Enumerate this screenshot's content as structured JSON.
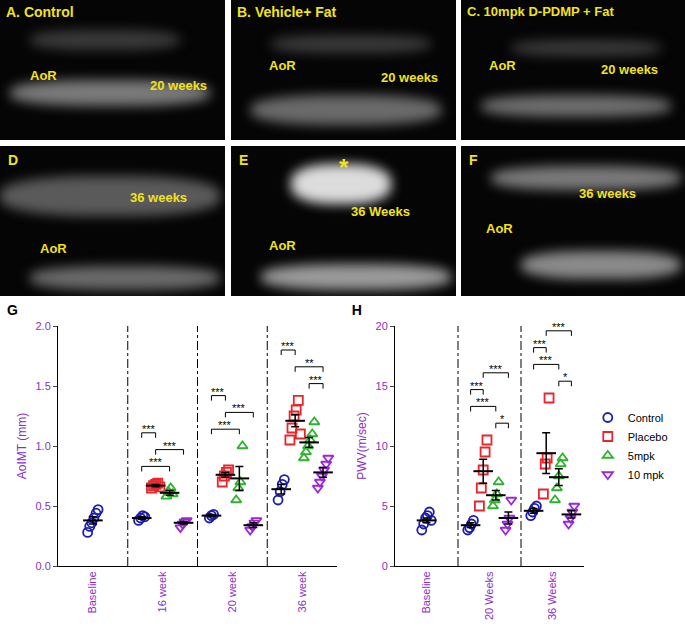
{
  "image_panels": [
    {
      "title": "A. Control",
      "vessel_label": "AoR",
      "time_label": "20 weeks"
    },
    {
      "title": "B. Vehicle+ Fat",
      "vessel_label": "AoR",
      "time_label": "20 weeks"
    },
    {
      "title": "C. 10mpk D-PDMP + Fat",
      "vessel_label": "AoR",
      "time_label": "20 weeks"
    },
    {
      "title": "D",
      "vessel_label": "AoR",
      "time_label": "36 weeks"
    },
    {
      "title": "E",
      "vessel_label": "AoR",
      "time_label": "36 Weeks",
      "marker_label": "*"
    },
    {
      "title": "F",
      "vessel_label": "AoR",
      "time_label": "36 weeks"
    }
  ],
  "chart_data": [
    {
      "type": "scatter",
      "title": "G",
      "y_label": "AoIMT (mm)",
      "categories": [
        "Baseline",
        "16 week",
        "20 week",
        "36 week"
      ],
      "ylim": [
        0,
        2.0
      ],
      "yticks": [
        {
          "value": 0,
          "label": "0.0"
        },
        {
          "value": 0.5,
          "label": "0.5"
        },
        {
          "value": 1.0,
          "label": "1.0"
        },
        {
          "value": 1.5,
          "label": "1.5"
        },
        {
          "value": 2.0,
          "label": "2.0"
        }
      ],
      "grid": false,
      "series": [
        {
          "name": "Control",
          "color": "#1c1cb0",
          "marker": "circle",
          "values": [
            [
              0.28,
              0.33,
              0.36,
              0.4,
              0.44,
              0.47
            ],
            [
              0.38,
              0.4,
              0.42,
              0.41
            ],
            [
              0.4,
              0.42,
              0.43
            ],
            [
              0.55,
              0.62,
              0.68,
              0.72
            ]
          ],
          "mean": [
            0.38,
            0.4,
            0.42,
            0.64
          ],
          "sem": [
            0.03,
            0.01,
            0.01,
            0.04
          ]
        },
        {
          "name": "Placebo",
          "color": "#e8262b",
          "marker": "square",
          "values": [
            null,
            [
              0.65,
              0.67,
              0.68,
              0.69,
              0.66
            ],
            [
              0.7,
              0.75,
              0.78,
              0.8
            ],
            [
              1.05,
              1.15,
              1.25,
              1.3,
              1.38,
              1.1
            ]
          ],
          "mean": [
            null,
            0.67,
            0.76,
            1.21
          ],
          "sem": [
            null,
            0.01,
            0.02,
            0.05
          ]
        },
        {
          "name": "5mpk",
          "color": "#2db32d",
          "marker": "triangle-up",
          "values": [
            null,
            [
              0.58,
              0.62,
              0.65,
              0.6
            ],
            [
              0.55,
              0.65,
              0.7,
              1.0
            ],
            [
              0.9,
              0.95,
              1.0,
              1.05,
              1.1,
              1.2
            ]
          ],
          "mean": [
            null,
            0.61,
            0.73,
            1.03
          ],
          "sem": [
            null,
            0.02,
            0.1,
            0.04
          ]
        },
        {
          "name": "10 mpk",
          "color": "#9b27d9",
          "marker": "triangle-down",
          "values": [
            null,
            [
              0.32,
              0.35,
              0.37,
              0.38
            ],
            [
              0.3,
              0.33,
              0.36,
              0.38
            ],
            [
              0.65,
              0.7,
              0.75,
              0.8,
              0.85,
              0.9
            ]
          ],
          "mean": [
            null,
            0.36,
            0.34,
            0.78
          ],
          "sem": [
            null,
            0.01,
            0.02,
            0.04
          ]
        }
      ],
      "annotations": [
        {
          "category": "16 week",
          "from": "Control",
          "to": "5mpk",
          "text": "***"
        },
        {
          "category": "16 week",
          "from": "Placebo",
          "to": "10 mpk",
          "text": "***"
        },
        {
          "category": "16 week",
          "from": "Control",
          "to": "Placebo",
          "text": "***"
        },
        {
          "category": "20 week",
          "from": "Control",
          "to": "5mpk",
          "text": "***"
        },
        {
          "category": "20 week",
          "from": "Placebo",
          "to": "10 mpk",
          "text": "***"
        },
        {
          "category": "20 week",
          "from": "Control",
          "to": "Placebo",
          "text": "***"
        },
        {
          "category": "36 week",
          "from": "5mpk",
          "to": "10 mpk",
          "text": "***"
        },
        {
          "category": "36 week",
          "from": "Placebo",
          "to": "10 mpk",
          "text": "**"
        },
        {
          "category": "36 week",
          "from": "Control",
          "to": "Placebo",
          "text": "***"
        }
      ]
    },
    {
      "type": "scatter",
      "title": "H",
      "y_label": "PWV(m/sec)",
      "categories": [
        "Baseline",
        "20 Weeks",
        "36 Weeks"
      ],
      "ylim": [
        0,
        20
      ],
      "yticks": [
        0,
        5,
        10,
        15,
        20
      ],
      "grid": false,
      "legend": "right",
      "series": [
        {
          "name": "Control",
          "color": "#1c1cb0",
          "marker": "circle",
          "values": [
            [
              3.0,
              3.5,
              4.0,
              4.2,
              4.5,
              3.8
            ],
            [
              3.0,
              3.2,
              3.5,
              3.8
            ],
            [
              4.2,
              4.5,
              4.8,
              5.0
            ]
          ],
          "mean": [
            3.8,
            3.4,
            4.6
          ],
          "sem": [
            0.2,
            0.2,
            0.2
          ]
        },
        {
          "name": "Placebo",
          "color": "#e8262b",
          "marker": "square",
          "values": [
            null,
            [
              5.0,
              6.5,
              8.0,
              9.5,
              10.5
            ],
            [
              6.0,
              8.5,
              9.0,
              14.0
            ]
          ],
          "mean": [
            null,
            7.9,
            9.4
          ],
          "sem": [
            null,
            1.0,
            1.7
          ]
        },
        {
          "name": "5mpk",
          "color": "#2db32d",
          "marker": "triangle-up",
          "values": [
            null,
            [
              5.0,
              5.5,
              6.0,
              7.0
            ],
            [
              5.5,
              6.5,
              7.5,
              8.5,
              9.0
            ]
          ],
          "mean": [
            null,
            5.9,
            7.4
          ],
          "sem": [
            null,
            0.4,
            0.7
          ]
        },
        {
          "name": "10 mpk",
          "color": "#9b27d9",
          "marker": "triangle-down",
          "values": [
            null,
            [
              3.0,
              3.5,
              4.0,
              5.5
            ],
            [
              3.5,
              4.0,
              4.5,
              5.0
            ]
          ],
          "mean": [
            null,
            4.0,
            4.3
          ],
          "sem": [
            null,
            0.5,
            0.3
          ]
        }
      ],
      "annotations": [
        {
          "category": "20 Weeks",
          "from": "5mpk",
          "to": "10 mpk",
          "text": "*"
        },
        {
          "category": "20 Weeks",
          "from": "Control",
          "to": "5mpk",
          "text": "***"
        },
        {
          "category": "20 Weeks",
          "from": "Control",
          "to": "Placebo",
          "text": "***"
        },
        {
          "category": "20 Weeks",
          "from": "Placebo",
          "to": "10 mpk",
          "text": "***"
        },
        {
          "category": "36 Weeks",
          "from": "5mpk",
          "to": "10 mpk",
          "text": "*"
        },
        {
          "category": "36 Weeks",
          "from": "Control",
          "to": "5mpk",
          "text": "***"
        },
        {
          "category": "36 Weeks",
          "from": "Control",
          "to": "Placebo",
          "text": "***"
        },
        {
          "category": "36 Weeks",
          "from": "Placebo",
          "to": "10 mpk",
          "text": "***"
        }
      ]
    }
  ]
}
